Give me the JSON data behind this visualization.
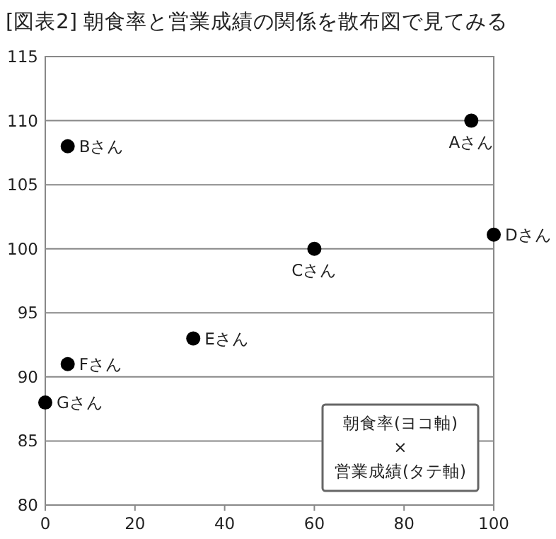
{
  "chart_data": {
    "type": "scatter",
    "title": "[図表2] 朝食率と営業成績の関係を散布図で見てみる",
    "series": [
      {
        "color": "#000000",
        "x": [
          95,
          5,
          60,
          100,
          33,
          5,
          0
        ],
        "values": [
          110,
          108,
          100,
          101.1,
          93,
          91,
          88
        ]
      }
    ],
    "annotations": [
      {
        "text": "Aさん",
        "x": 95,
        "y": 110
      },
      {
        "text": "Bさん",
        "x": 5,
        "y": 108
      },
      {
        "text": "Cさん",
        "x": 60,
        "y": 100
      },
      {
        "text": "Dさん",
        "x": 100,
        "y": 101.1
      },
      {
        "text": "Eさん",
        "x": 33,
        "y": 93
      },
      {
        "text": "Fさん",
        "x": 5,
        "y": 91
      },
      {
        "text": "Gさん",
        "x": 0,
        "y": 88
      },
      "朝食率(ヨコ軸)\n×\n営業成績(タテ軸)"
    ],
    "xlim": [
      0,
      100
    ],
    "xticks": [
      0,
      20,
      40,
      60,
      80,
      100
    ],
    "ylim": [
      80,
      115
    ],
    "yticks": [
      80,
      85,
      90,
      95,
      100,
      105,
      110,
      115
    ],
    "grid": "y",
    "marker": "circle"
  }
}
